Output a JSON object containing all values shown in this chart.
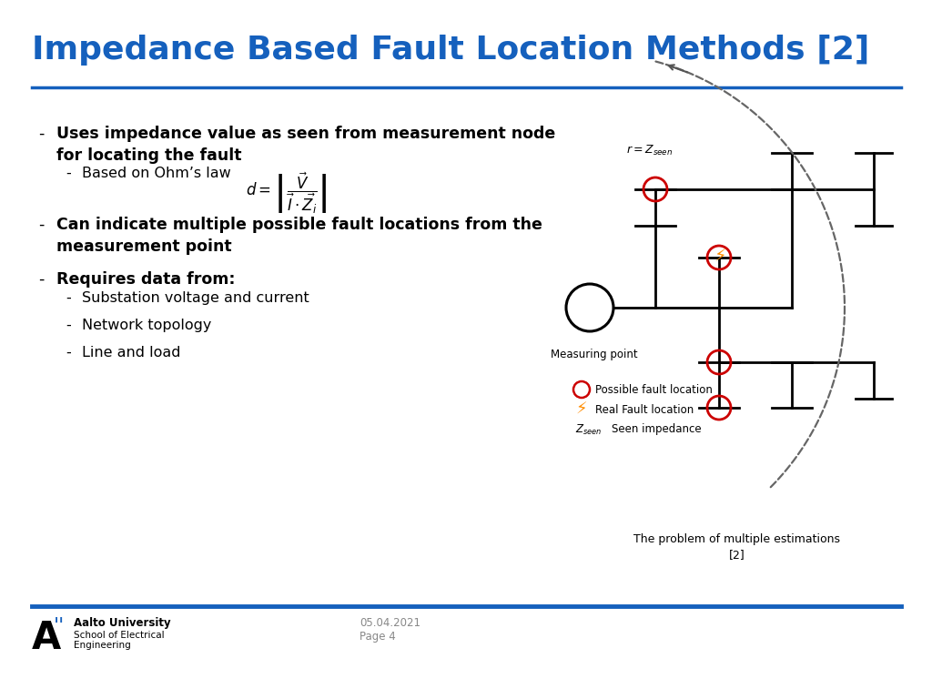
{
  "title": "Impedance Based Fault Location Methods [2]",
  "title_color": "#1560BD",
  "title_fontsize": 26,
  "hr_color": "#1560BD",
  "bg_color": "#ffffff",
  "bullet1_bold": "Uses impedance value as seen from measurement node\nfor locating the fault",
  "bullet1_sub": "Based on Ohm’s law",
  "bullet2_bold": "Can indicate multiple possible fault locations from the\nmeasurement point",
  "bullet3_bold": "Requires data from:",
  "bullet3_subs": [
    "Substation voltage and current",
    "Network topology",
    "Line and load"
  ],
  "footer_line_color": "#1560BD",
  "footer_date": "05.04.2021",
  "footer_page": "Page 4",
  "footer_uni": "Aalto University",
  "footer_school": "School of Electrical\nEngineering",
  "caption": "The problem of multiple estimations\n[2]",
  "caption_fontsize": 9,
  "body_fontsize": 12.5,
  "sub_fontsize": 11.5,
  "dash_color": "#555555",
  "red_circle_color": "#cc0000",
  "bullet_dash": "-"
}
